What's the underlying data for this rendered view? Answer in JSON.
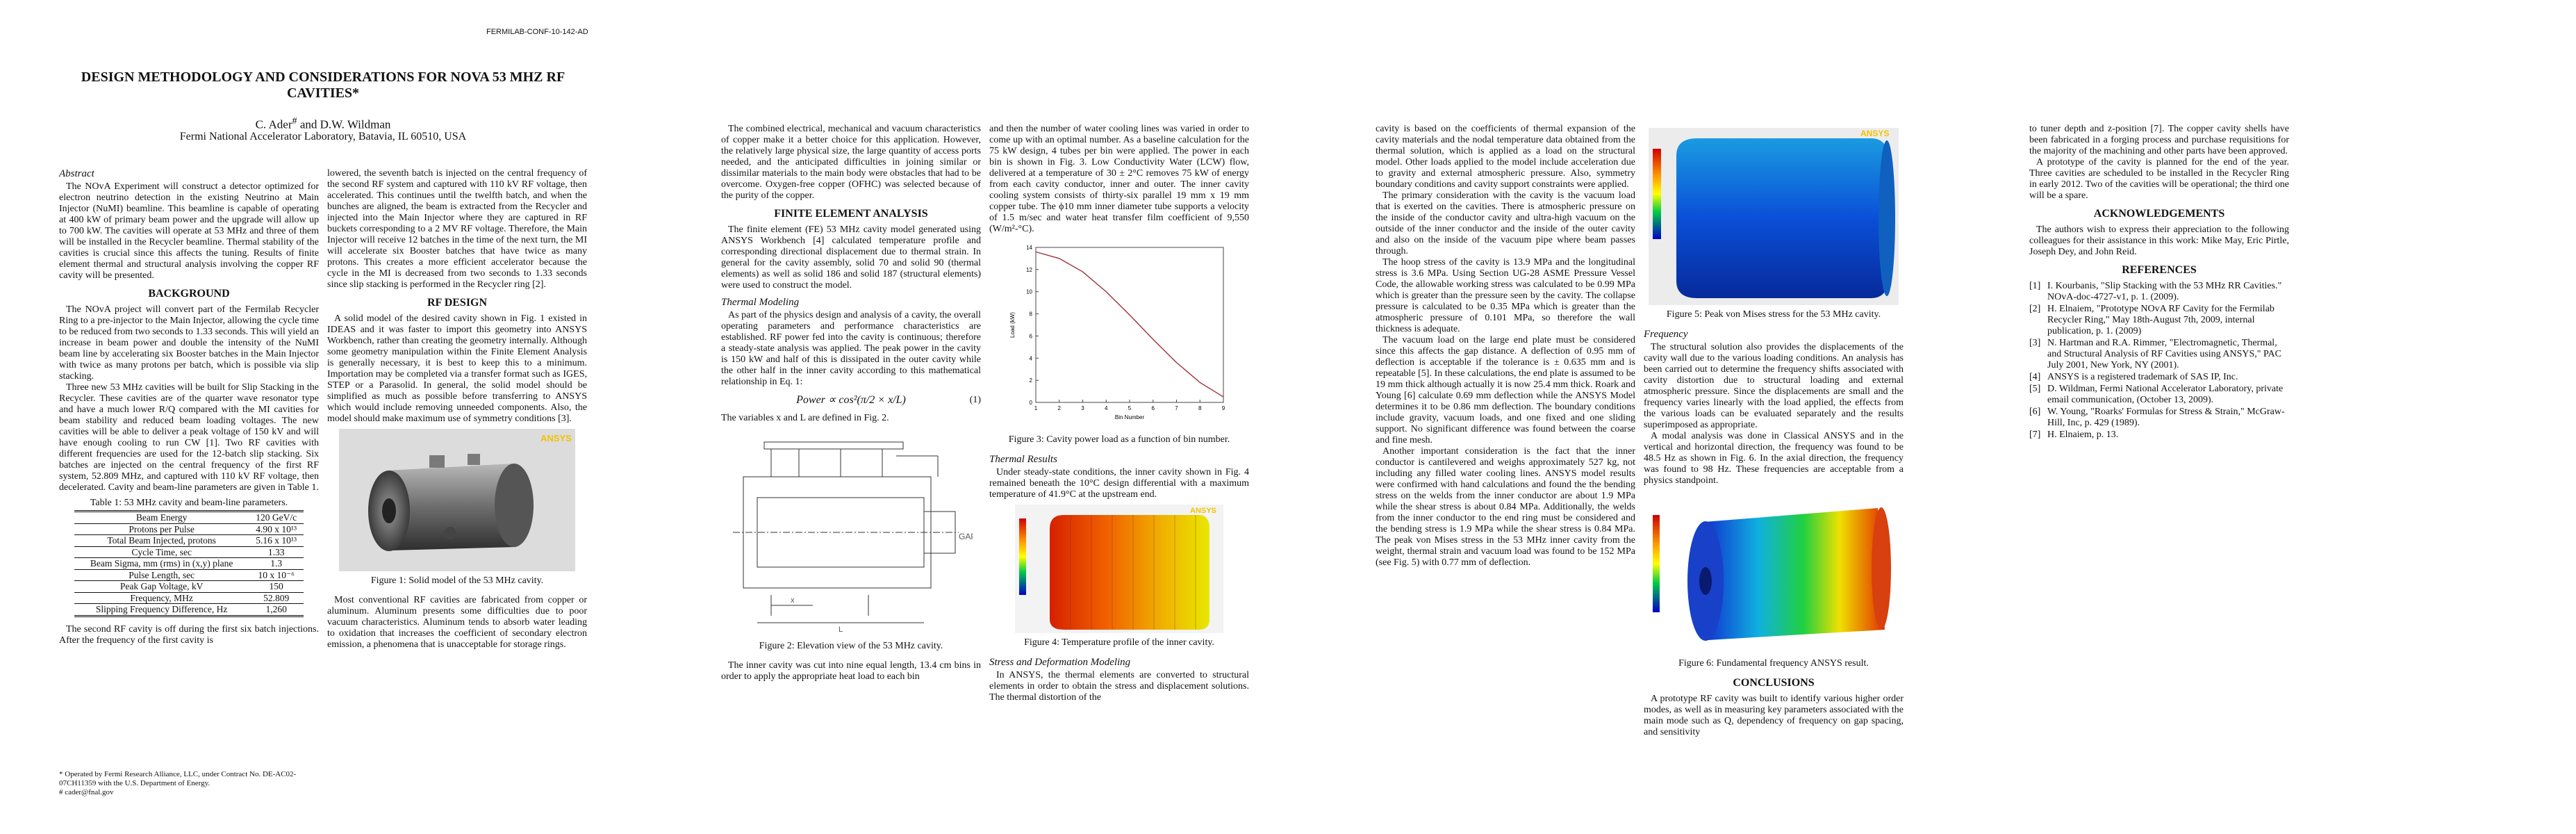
{
  "header": "FERMILAB-CONF-10-142-AD",
  "title": "DESIGN METHODOLOGY AND CONSIDERATIONS FOR NOVA 53 MHZ RF CAVITIES*",
  "authors": {
    "first": "C. Ader",
    "mark": "#",
    "rest": " and D.W. Wildman"
  },
  "affiliation": "Fermi National Accelerator Laboratory, Batavia, IL 60510, USA",
  "abstract": {
    "heading": "Abstract",
    "text": "The NOvA Experiment will construct a detector optimized for electron neutrino detection in the existing Neutrino at Main Injector (NuMI) beamline. This beamline is capable of operating at 400 kW of primary beam power and the upgrade will allow up to 700 kW. The cavities will operate at 53 MHz and three of them will be installed in the Recycler beamline. Thermal stability of the cavities is crucial since this affects the tuning. Results of finite element thermal and structural analysis involving the copper RF cavity will be presented."
  },
  "background": {
    "heading": "BACKGROUND",
    "paragraphs": [
      "The NOvA project will convert part of the Fermilab Recycler Ring to a pre-injector to the Main Injector, allowing the cycle time to be reduced from two seconds to 1.33 seconds. This will yield an increase in beam power and double the intensity of the NuMI beam line by accelerating six Booster batches in the Main Injector with twice as many protons per batch, which is possible via slip stacking.",
      "Three new 53 MHz cavities will be built for Slip Stacking in the Recycler. These cavities are of the quarter wave resonator type and have a much lower R/Q compared with the MI cavities for beam stability and reduced beam loading voltages. The new cavities will be able to deliver a peak voltage of 150 kV and will have enough cooling to run CW [1]. Two RF cavities with different frequencies are used for the 12-batch slip stacking. Six batches are injected on the central frequency of the first RF system, 52.809 MHz, and captured with 110 kV RF voltage, then decelerated. Cavity and beam-line parameters are given in Table 1.",
      "The second RF cavity is off during the first six batch injections. After the frequency of the first cavity is",
      "lowered, the seventh batch is injected on the central frequency of the second RF system and captured with 110 kV RF voltage, then accelerated. This continues until the twelfth batch, and when the bunches are aligned, the beam is extracted from the Recycler and injected into the Main Injector where they are captured in RF buckets corresponding to a 2 MV RF voltage. Therefore, the Main Injector will receive 12 batches in the time of the next turn, the MI will accelerate six Booster batches that have twice as many protons. This creates a more efficient accelerator because the cycle in the MI is decreased from two seconds to 1.33 seconds since slip stacking is performed in the Recycler ring [2]."
    ]
  },
  "table": {
    "caption": "Table 1: 53 MHz cavity and beam-line parameters.",
    "rows": [
      [
        "Beam Energy",
        "120 GeV/c"
      ],
      [
        "Protons per Pulse",
        "4.90 x 10¹³"
      ],
      [
        "Total Beam Injected, protons",
        "5.16 x 10¹³"
      ],
      [
        "Cycle Time, sec",
        "1.33"
      ],
      [
        "Beam Sigma, mm (rms) in (x,y) plane",
        "1.3"
      ],
      [
        "Pulse Length, sec",
        "10 x 10⁻⁶"
      ],
      [
        "Peak Gap Voltage, kV",
        "150"
      ],
      [
        "Frequency, MHz",
        "52.809"
      ],
      [
        "Slipping Frequency Difference, Hz",
        "1,260"
      ]
    ]
  },
  "footnotes": [
    "* Operated by Fermi Research Alliance, LLC, under Contract No. DE-AC02-07CH11359 with the U.S. Department of Energy.",
    "# cader@fnal.gov"
  ],
  "rf_design": {
    "heading": "RF DESIGN",
    "paragraphs": [
      "A solid model of the desired cavity shown in Fig. 1 existed in IDEAS and it was faster to import this geometry into ANSYS Workbench, rather than creating the geometry internally. Although some geometry manipulation within the Finite Element Analysis is generally necessary, it is best to keep this to a minimum. Importation may be completed via a transfer format such as IGES, STEP or a Parasolid. In general, the solid model should be simplified as much as possible before transferring to ANSYS which would include removing unneeded components. Also, the model should make maximum use of symmetry conditions [3].",
      "Most conventional RF cavities are fabricated from copper or aluminum. Aluminum presents some difficulties due to poor vacuum characteristics. Aluminum tends to absorb water leading to oxidation that increases the coefficient of secondary electron emission, a phenomena that is unacceptable for storage rings.",
      "The combined electrical, mechanical and vacuum characteristics of copper make it a better choice for this application. However, the relatively large physical size, the large quantity of access ports needed, and the anticipated difficulties in joining similar or dissimilar materials to the main body were obstacles that had to be overcome. Oxygen-free copper (OFHC) was selected because of the purity of the copper."
    ]
  },
  "figure1": {
    "logo": "ANSYS",
    "caption": "Figure 1: Solid model of the 53 MHz cavity."
  },
  "fea": {
    "heading": "FINITE ELEMENT ANALYSIS",
    "text": "The finite element (FE) 53 MHz cavity model generated using ANSYS Workbench [4] calculated temperature profile and corresponding directional displacement due to thermal strain. In general for the cavity assembly, solid 70 and solid 90 (thermal elements) as well as solid 186 and solid 187 (structural elements) were used to construct the model."
  },
  "thermal_modeling": {
    "heading": "Thermal Modeling",
    "paragraphs": [
      "As part of the physics design and analysis of a cavity, the overall operating parameters and performance characteristics are established. RF power fed into the cavity is continuous; therefore a steady-state analysis was applied. The peak power in the cavity is 150 kW and half of this is dissipated in the outer cavity while the other half in the inner cavity according to this mathematical relationship in Eq. 1:",
      "The variables x and L are defined in Fig. 2.",
      "The inner cavity was cut into nine equal length, 13.4 cm bins in order to apply the appropriate heat load to each bin",
      "and then the number of water cooling lines was varied in order to come up with an optimal number. As a baseline calculation for the 75 kW design, 4 tubes per bin were applied. The power in each bin is shown in Fig. 3. Low Conductivity Water (LCW) flow, delivered at a temperature of 30 ± 2°C removes 75 kW of energy from each cavity conductor, inner and outer. The inner cavity cooling system consists of thirty-six parallel 19 mm x 19 mm copper tube. The ϕ10 mm inner diameter tube supports a velocity of 1.5 m/sec and water heat transfer film coefficient of 9,550 (W/m²-°C)."
    ]
  },
  "equation": {
    "text": "Power ∝ cos²(π/2 × x/L)",
    "number": "(1)"
  },
  "figure2": {
    "gap_label": "GAP",
    "x_label": "x",
    "l_label": "L",
    "caption": "Figure 2: Elevation view of the 53 MHz cavity."
  },
  "figure3": {
    "y_label": "Load (kW)",
    "x_label": "Bin Number",
    "x": [
      1,
      2,
      3,
      4,
      5,
      6,
      7,
      8,
      9
    ],
    "values": [
      13.6,
      13.0,
      11.8,
      10.0,
      7.9,
      5.7,
      3.6,
      1.8,
      0.5
    ],
    "color": "#a0303a",
    "xlim": [
      1,
      9
    ],
    "ylim": [
      0,
      14
    ],
    "xticks": [
      1,
      2,
      3,
      4,
      5,
      6,
      7,
      8,
      9
    ],
    "yticks": [
      0,
      2,
      4,
      6,
      8,
      10,
      12,
      14
    ],
    "caption": "Figure 3: Cavity power load as a function of bin number."
  },
  "thermal_results": {
    "heading": "Thermal Results",
    "text": "Under steady-state conditions, the inner cavity shown in Fig. 4 remained beneath the 10°C design differential with a maximum temperature of 41.9°C at the upstream end."
  },
  "figure4": {
    "logo": "ANSYS",
    "caption": "Figure 4: Temperature profile of the  inner cavity."
  },
  "stress": {
    "heading": "Stress and Deformation Modeling",
    "paragraphs": [
      "In ANSYS, the thermal elements are converted to structural elements in order to obtain the stress and displacement solutions. The thermal distortion of the",
      "cavity is based on the coefficients of thermal expansion of the cavity materials and the nodal temperature data obtained from the thermal solution, which is applied as a load on the structural model. Other loads applied to the model include acceleration due to gravity and external atmospheric pressure. Also, symmetry boundary conditions and cavity support constraints were applied.",
      "The primary consideration with the cavity is the vacuum load that is exerted on the cavities. There is atmospheric pressure on the inside of the conductor cavity and ultra-high vacuum on the outside of the inner conductor and the inside of the outer cavity and also on the inside of the vacuum pipe where beam passes through.",
      "The hoop stress of the cavity is 13.9 MPa and the longitudinal stress is 3.6 MPa. Using Section UG-28 ASME Pressure Vessel Code, the allowable working stress was calculated to be 0.99 MPa which is greater than the pressure seen by the cavity. The collapse pressure is calculated to be 0.35 MPa which is greater than the atmospheric pressure of 0.101 MPa, so therefore the wall thickness is adequate.",
      "The vacuum load on the large end plate must be considered since this affects the gap distance. A deflection of 0.95 mm of deflection is acceptable if the tolerance is ± 0.635 mm and is repeatable [5]. In these calculations, the end plate is assumed to be 19 mm thick although actually it is now 25.4 mm thick. Roark and Young [6] calculate 0.69 mm deflection while the ANSYS Model determines it to be 0.86 mm deflection. The boundary conditions include gravity, vacuum loads, and one fixed and one sliding support. No significant difference was found between the coarse and fine mesh.",
      "Another important consideration is the fact that the inner conductor is cantilevered and weighs approximately 527 kg, not including any filled water cooling lines. ANSYS model results were confirmed with hand calculations and found the the bending stress on the welds from the inner conductor are about 1.9 MPa while the shear stress is about 0.84 MPa. Additionally, the welds from the inner conductor to the end ring must be considered and the bending stress is 1.9 MPa while the shear stress is 0.84 MPa. The peak von Mises stress in the 53 MHz inner cavity from the weight, thermal strain and vacuum load was found to be 152 MPa (see Fig. 5) with 0.77 mm of deflection."
    ]
  },
  "figure5": {
    "logo": "ANSYS",
    "caption": "Figure 5: Peak von Mises stress for the 53 MHz cavity."
  },
  "frequency": {
    "heading": "Frequency",
    "paragraphs": [
      "The structural solution also provides the displacements of the cavity wall due to the various loading conditions. An analysis has been carried out to determine the frequency shifts associated with cavity distortion due to structural loading and external atmospheric pressure. Since the displacements are small and the frequency varies linearly with the load applied, the effects from the various loads can be evaluated separately and the results superimposed as appropriate.",
      "A modal analysis was done in Classical ANSYS and in the vertical and horizontal direction, the frequency was found to be 48.5 Hz as shown in Fig. 6. In the axial direction, the frequency was found to 98 Hz. These frequencies are acceptable from a physics standpoint."
    ]
  },
  "figure6": {
    "caption": "Figure 6: Fundamental frequency ANSYS result."
  },
  "conclusions": {
    "heading": "CONCLUSIONS",
    "paragraphs": [
      "A prototype RF cavity was built to identify various higher order modes, as well as in measuring key parameters associated with the main mode such as Q, dependency of frequency on gap spacing, and sensitivity",
      "to tuner depth and z-position [7]. The copper cavity shells have been fabricated in a forging process and purchase requisitions for the majority of the machining and other parts have been approved.",
      "A prototype of the cavity is planned for the end of the year. Three cavities are scheduled to be installed in the Recycler Ring in early 2012. Two of the cavities will be operational; the third one will be a spare."
    ]
  },
  "acknowledgements": {
    "heading": "ACKNOWLEDGEMENTS",
    "text": "The authors wish to express their appreciation to the following colleagues for their assistance in this work: Mike May, Eric Pirtle, Joseph Dey, and John Reid."
  },
  "references": {
    "heading": "REFERENCES",
    "items": [
      [
        "[1]",
        "I. Kourbanis, \"Slip Stacking with the 53 MHz RR Cavities.\" NOvA-doc-4727-v1, p. 1. (2009)."
      ],
      [
        "[2]",
        "H. Elnaiem, \"Prototype NOvA RF Cavity for the Fermilab Recycler Ring,\" May 18th-August 7th, 2009, internal publication, p. 1. (2009)"
      ],
      [
        "[3]",
        "N. Hartman and R.A. Rimmer, \"Electromagnetic, Thermal, and Structural Analysis of RF Cavities using ANSYS,\" PAC July 2001, New York, NY (2001)."
      ],
      [
        "[4]",
        "ANSYS is a registered trademark of SAS IP, Inc."
      ],
      [
        "[5]",
        "D. Wildman, Fermi National Accelerator Laboratory, private email communication, (October 13, 2009)."
      ],
      [
        "[6]",
        "W. Young, \"Roarks' Formulas for Stress & Strain,\" McGraw-Hill, Inc, p. 429 (1989)."
      ],
      [
        "[7]",
        "H. Elnaiem, p. 13."
      ]
    ]
  }
}
